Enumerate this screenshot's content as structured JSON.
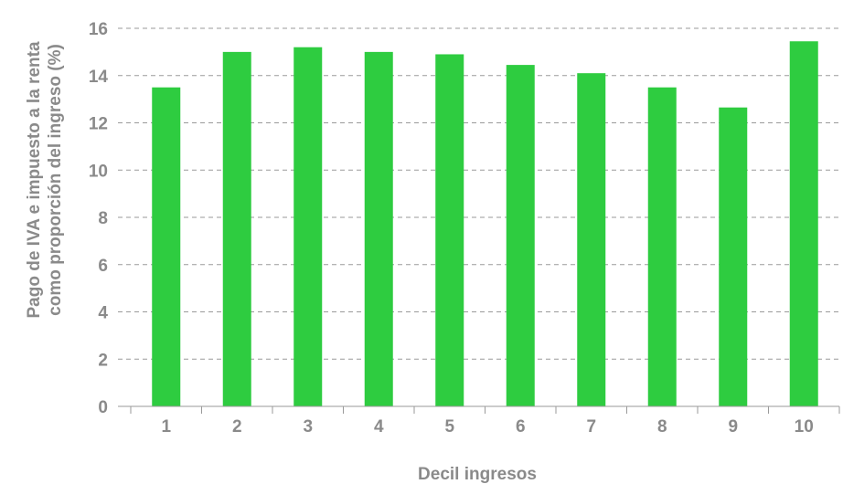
{
  "chart_data": {
    "type": "bar",
    "title": "",
    "xlabel": "Decil ingresos",
    "ylabel_lines": [
      "Pago de IVA e impuesto a la renta",
      "como proporción del ingreso (%)"
    ],
    "categories": [
      "1",
      "2",
      "3",
      "4",
      "5",
      "6",
      "7",
      "8",
      "9",
      "10"
    ],
    "values": [
      13.5,
      15.0,
      15.2,
      15.0,
      14.9,
      14.45,
      14.1,
      13.5,
      12.65,
      15.45
    ],
    "ylim": [
      0,
      16
    ],
    "yticks": [
      "0",
      "2",
      "4",
      "6",
      "8",
      "10",
      "12",
      "14",
      "16"
    ],
    "grid": true,
    "legend": "none",
    "bar_color": "#2ecc40"
  }
}
